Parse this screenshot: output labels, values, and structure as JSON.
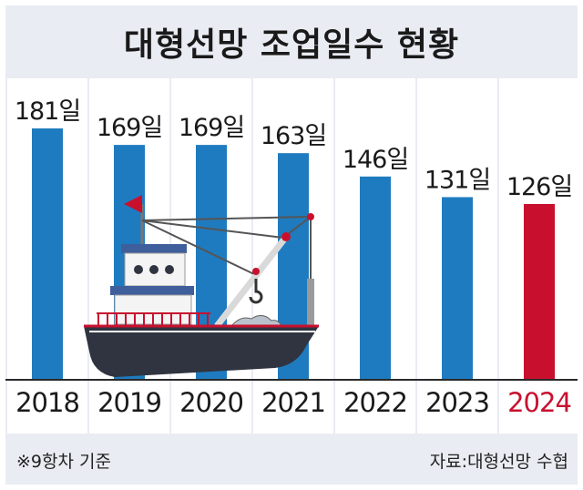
{
  "chart_data": {
    "type": "bar",
    "title": "대형선망 조업일수 현황",
    "categories": [
      "2018",
      "2019",
      "2020",
      "2021",
      "2022",
      "2023",
      "2024"
    ],
    "values": [
      181,
      169,
      169,
      163,
      146,
      131,
      126
    ],
    "value_labels": [
      "181일",
      "169일",
      "169일",
      "163일",
      "146일",
      "131일",
      "126일"
    ],
    "ylim": [
      0,
      181
    ],
    "bar_color": "#1f7bbf",
    "highlight_color": "#c8102e",
    "highlight_category": "2024",
    "gridlines": "none"
  },
  "footer": {
    "note": "※9항차 기준",
    "source": "자료:대형선망 수협"
  },
  "colors": {
    "background": "#e9ecf2",
    "panel": "#ffffff",
    "hull": "#2f3440",
    "cabin": "#3e5f9c"
  },
  "illustration": "fishing-boat"
}
